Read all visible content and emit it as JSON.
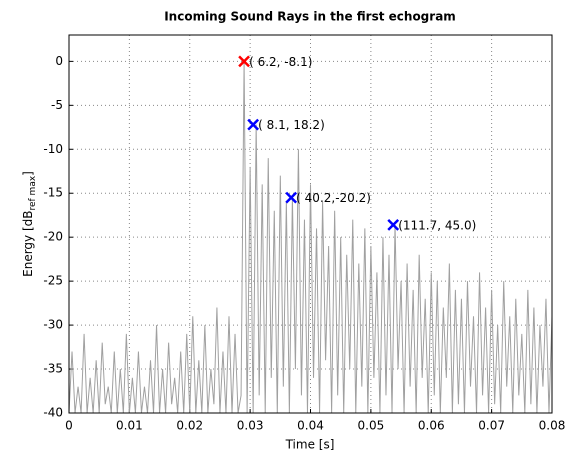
{
  "chart_data": {
    "type": "line",
    "title": "Incoming Sound Rays in the first echogram",
    "xlabel": "Time [s]",
    "ylabel": {
      "text": "Energy [dB",
      "sub": "ref max",
      "end": "]"
    },
    "xlim": [
      0,
      0.08
    ],
    "xticks": [
      0,
      0.01,
      0.02,
      0.03,
      0.04,
      0.05,
      0.06,
      0.07,
      0.08
    ],
    "ylim": [
      -40,
      3
    ],
    "yticks": [
      -40,
      -35,
      -30,
      -25,
      -20,
      -15,
      -10,
      -5,
      0
    ],
    "grid": true,
    "series": [
      {
        "color": "#a0a0a0",
        "x": [
          0,
          0.0005,
          0.001,
          0.0015,
          0.002,
          0.0025,
          0.003,
          0.0035,
          0.004,
          0.0045,
          0.005,
          0.0055,
          0.006,
          0.0065,
          0.007,
          0.0075,
          0.008,
          0.0085,
          0.009,
          0.0095,
          0.01,
          0.0105,
          0.011,
          0.0115,
          0.012,
          0.0125,
          0.013,
          0.0135,
          0.014,
          0.0145,
          0.015,
          0.0155,
          0.016,
          0.0165,
          0.017,
          0.0175,
          0.018,
          0.0185,
          0.019,
          0.0195,
          0.02,
          0.0205,
          0.021,
          0.0215,
          0.022,
          0.0225,
          0.023,
          0.0235,
          0.024,
          0.0245,
          0.025,
          0.0255,
          0.026,
          0.0265,
          0.027,
          0.0275,
          0.028,
          0.0285,
          0.029,
          0.0295,
          0.03,
          0.0305,
          0.031,
          0.0315,
          0.032,
          0.0325,
          0.033,
          0.0335,
          0.034,
          0.0345,
          0.035,
          0.0355,
          0.036,
          0.0365,
          0.037,
          0.0375,
          0.038,
          0.0385,
          0.039,
          0.0395,
          0.04,
          0.0405,
          0.041,
          0.0415,
          0.042,
          0.0425,
          0.043,
          0.0435,
          0.044,
          0.0445,
          0.045,
          0.0455,
          0.046,
          0.0465,
          0.047,
          0.0475,
          0.048,
          0.0485,
          0.049,
          0.0495,
          0.05,
          0.0505,
          0.051,
          0.0515,
          0.052,
          0.0525,
          0.053,
          0.0535,
          0.054,
          0.0545,
          0.055,
          0.0555,
          0.056,
          0.0565,
          0.057,
          0.0575,
          0.058,
          0.0585,
          0.059,
          0.0595,
          0.06,
          0.0605,
          0.061,
          0.0615,
          0.062,
          0.0625,
          0.063,
          0.0635,
          0.064,
          0.0645,
          0.065,
          0.0655,
          0.066,
          0.0665,
          0.067,
          0.0675,
          0.068,
          0.0685,
          0.069,
          0.0695,
          0.07,
          0.0705,
          0.071,
          0.0715,
          0.072,
          0.0725,
          0.073,
          0.0735,
          0.074,
          0.0745,
          0.075,
          0.0755,
          0.076,
          0.0765,
          0.077,
          0.0775,
          0.078,
          0.0785,
          0.079,
          0.0795,
          0.08
        ],
        "values": [
          -40,
          -33,
          -40,
          -37,
          -40,
          -31,
          -40,
          -36,
          -40,
          -34,
          -40,
          -32,
          -39,
          -37,
          -40,
          -33,
          -40,
          -35,
          -40,
          -31,
          -40,
          -36,
          -40,
          -33,
          -40,
          -37,
          -40,
          -34,
          -40,
          -30,
          -40,
          -35,
          -40,
          -32,
          -39,
          -36,
          -40,
          -33,
          -40,
          -31,
          -40,
          -29,
          -40,
          -34,
          -40,
          -30,
          -40,
          -35,
          -39,
          -28,
          -40,
          -33,
          -40,
          -29,
          -40,
          -31,
          -40,
          -38,
          0,
          -40,
          -12,
          -40,
          -7.2,
          -38,
          -14,
          -40,
          -11,
          -36,
          -17,
          -40,
          -13,
          -37,
          -16,
          -40,
          -15.5,
          -35,
          -10,
          -38,
          -18,
          -40,
          -14,
          -36,
          -19,
          -40,
          -16,
          -34,
          -21,
          -40,
          -17,
          -38,
          -20,
          -40,
          -22,
          -35,
          -18,
          -40,
          -23,
          -37,
          -19,
          -40,
          -21,
          -36,
          -24,
          -40,
          -20,
          -38,
          -22,
          -40,
          -18.6,
          -35,
          -25,
          -40,
          -23,
          -37,
          -26,
          -40,
          -22,
          -36,
          -27,
          -40,
          -24,
          -38,
          -25,
          -40,
          -28,
          -36,
          -23,
          -40,
          -26,
          -39,
          -27,
          -40,
          -25,
          -37,
          -29,
          -40,
          -24,
          -38,
          -28,
          -40,
          -26,
          -39,
          -30,
          -40,
          -25,
          -37,
          -29,
          -40,
          -27,
          -38,
          -31,
          -40,
          -26,
          -39,
          -28,
          -40,
          -30,
          -37,
          -27,
          -40,
          -29
        ]
      }
    ],
    "markers": [
      {
        "x": 0.029,
        "y": 0,
        "color": "#ff0000",
        "label": "( 6.2, -8.1)"
      },
      {
        "x": 0.0305,
        "y": -7.2,
        "color": "#0000ff",
        "label": "( 8.1, 18.2)"
      },
      {
        "x": 0.0368,
        "y": -15.5,
        "color": "#0000ff",
        "label": "( 40.2,-20.2)"
      },
      {
        "x": 0.0537,
        "y": -18.6,
        "color": "#0000ff",
        "label": "(111.7, 45.0)"
      }
    ]
  }
}
